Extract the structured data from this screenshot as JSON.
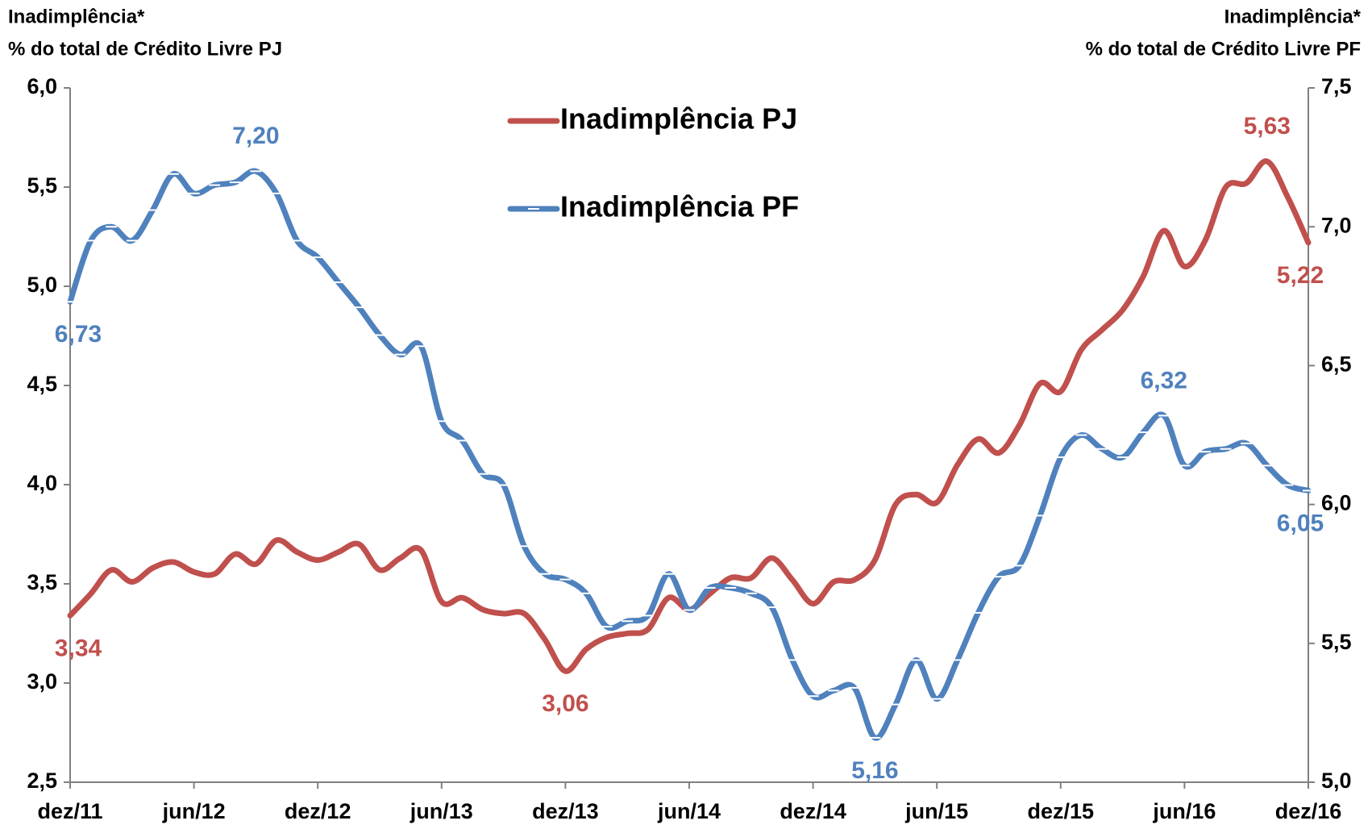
{
  "chart_data": {
    "type": "line",
    "ylabel": [
      "Inadimplência*",
      "% do total de Crédito Livre PJ"
    ],
    "y2label": [
      "Inadimplência*",
      "% do total de Crédito Livre PF"
    ],
    "categories": [
      "dez/11",
      null,
      null,
      null,
      null,
      null,
      "jun/12",
      null,
      null,
      null,
      null,
      null,
      "dez/12",
      null,
      null,
      null,
      null,
      null,
      "jun/13",
      null,
      null,
      null,
      null,
      null,
      "dez/13",
      null,
      null,
      null,
      null,
      null,
      "jun/14",
      null,
      null,
      null,
      null,
      null,
      "dez/14",
      null,
      null,
      null,
      null,
      null,
      "jun/15",
      null,
      null,
      null,
      null,
      null,
      "dez/15",
      null,
      null,
      null,
      null,
      null,
      "jun/16",
      null,
      null,
      null,
      null,
      null,
      "dez/16"
    ],
    "series": [
      {
        "name": "Inadimplência PJ",
        "color": "#c0504d",
        "axis": "y",
        "values": [
          3.34,
          3.45,
          3.57,
          3.51,
          3.58,
          3.61,
          3.56,
          3.55,
          3.65,
          3.6,
          3.72,
          3.66,
          3.62,
          3.66,
          3.7,
          3.57,
          3.63,
          3.67,
          3.41,
          3.43,
          3.37,
          3.35,
          3.35,
          3.22,
          3.06,
          3.17,
          3.23,
          3.25,
          3.27,
          3.43,
          3.37,
          3.45,
          3.53,
          3.53,
          3.63,
          3.52,
          3.4,
          3.51,
          3.52,
          3.62,
          3.9,
          3.95,
          3.91,
          4.1,
          4.23,
          4.16,
          4.3,
          4.51,
          4.47,
          4.68,
          4.78,
          4.88,
          5.05,
          5.28,
          5.1,
          5.23,
          5.5,
          5.52,
          5.63,
          5.45,
          5.22
        ],
        "value_labels": [
          "3,34",
          null,
          null,
          null,
          null,
          null,
          null,
          null,
          null,
          null,
          null,
          null,
          null,
          null,
          null,
          null,
          null,
          null,
          null,
          null,
          null,
          null,
          null,
          null,
          "3,06",
          null,
          null,
          null,
          null,
          null,
          null,
          null,
          null,
          null,
          null,
          null,
          null,
          null,
          null,
          null,
          null,
          null,
          null,
          null,
          null,
          null,
          null,
          null,
          null,
          null,
          null,
          null,
          null,
          null,
          null,
          null,
          null,
          null,
          "5,63",
          null,
          "5,22"
        ]
      },
      {
        "name": "Inadimplência PF",
        "color": "#4f81bd",
        "axis": "y2",
        "markers": true,
        "values": [
          6.73,
          6.95,
          7.0,
          6.95,
          7.06,
          7.19,
          7.12,
          7.15,
          7.16,
          7.2,
          7.12,
          6.95,
          6.89,
          6.8,
          6.71,
          6.61,
          6.54,
          6.57,
          6.3,
          6.23,
          6.11,
          6.07,
          5.85,
          5.75,
          5.73,
          5.68,
          5.56,
          5.58,
          5.6,
          5.75,
          5.62,
          5.7,
          5.7,
          5.68,
          5.63,
          5.44,
          5.31,
          5.33,
          5.34,
          5.16,
          5.28,
          5.44,
          5.3,
          5.44,
          5.61,
          5.74,
          5.78,
          5.96,
          6.17,
          6.25,
          6.2,
          6.17,
          6.26,
          6.32,
          6.14,
          6.19,
          6.2,
          6.22,
          6.14,
          6.07,
          6.05
        ],
        "value_labels": [
          "6,73",
          null,
          null,
          null,
          null,
          null,
          null,
          null,
          null,
          "7,20",
          null,
          null,
          null,
          null,
          null,
          null,
          null,
          null,
          null,
          null,
          null,
          null,
          null,
          null,
          null,
          null,
          null,
          null,
          null,
          null,
          null,
          null,
          null,
          null,
          null,
          null,
          null,
          null,
          null,
          "5,16",
          null,
          null,
          null,
          null,
          null,
          null,
          null,
          null,
          null,
          null,
          null,
          null,
          null,
          "6,32",
          null,
          null,
          null,
          null,
          null,
          null,
          "6,05"
        ]
      }
    ],
    "ylim": [
      2.5,
      6.0
    ],
    "yticks": [
      {
        "value": 2.5,
        "label": "2,5"
      },
      {
        "value": 3.0,
        "label": "3,0"
      },
      {
        "value": 3.5,
        "label": "3,5"
      },
      {
        "value": 4.0,
        "label": "4,0"
      },
      {
        "value": 4.5,
        "label": "4,5"
      },
      {
        "value": 5.0,
        "label": "5,0"
      },
      {
        "value": 5.5,
        "label": "5,5"
      },
      {
        "value": 6.0,
        "label": "6,0"
      }
    ],
    "y2lim": [
      5.0,
      7.5
    ],
    "y2ticks": [
      {
        "value": 5.0,
        "label": "5,0"
      },
      {
        "value": 5.5,
        "label": "5,5"
      },
      {
        "value": 6.0,
        "label": "6,0"
      },
      {
        "value": 6.5,
        "label": "6,5"
      },
      {
        "value": 7.0,
        "label": "7,0"
      },
      {
        "value": 7.5,
        "label": "7,5"
      }
    ],
    "grid": false,
    "legend": "top-center"
  }
}
